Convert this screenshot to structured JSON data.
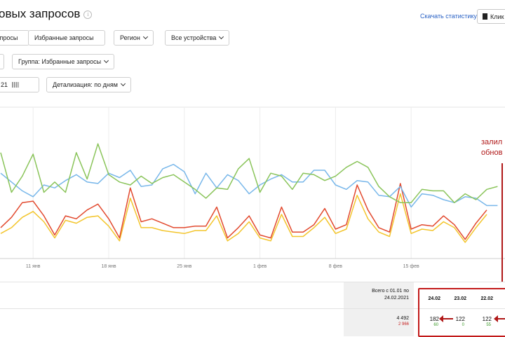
{
  "header": {
    "title": "овых запросов",
    "info_glyph": "i",
    "download_link": "Скачать статистику",
    "clip_button": "Клик"
  },
  "filters": {
    "queries_tab": "Запросы",
    "favorites_tab": "Избранные запросы",
    "region": "Регион",
    "devices": "Все устройства",
    "group": "Группа: Избранные запросы",
    "date_value": "21",
    "detail": "Детализация: по дням"
  },
  "annotation": {
    "line1": "залил",
    "line2": "обнов"
  },
  "colors": {
    "green": "#8ac45a",
    "blue": "#78b7ea",
    "red": "#e2492e",
    "yellow": "#f3c52c",
    "annotation": "#b01818"
  },
  "chart_data": {
    "type": "line",
    "x_ticks": [
      "11 янв",
      "18 янв",
      "25 янв",
      "1 фев",
      "8 фев",
      "15 фев"
    ],
    "series": [
      {
        "color": "green",
        "values": [
          72,
          45,
          56,
          71,
          45,
          52,
          45,
          72,
          54,
          78,
          57,
          52,
          50,
          56,
          51,
          55,
          57,
          52,
          47,
          41,
          48,
          47,
          61,
          68,
          45,
          58,
          56,
          47,
          58,
          57,
          53,
          56,
          62,
          66,
          62,
          49,
          42,
          38,
          38,
          47,
          46,
          46,
          38,
          44,
          40,
          47,
          49
        ]
      },
      {
        "color": "blue",
        "values": [
          58,
          52,
          46,
          42,
          50,
          48,
          53,
          57,
          52,
          51,
          58,
          55,
          60,
          49,
          50,
          61,
          64,
          59,
          44,
          58,
          48,
          57,
          53,
          44,
          50,
          54,
          57,
          52,
          52,
          60,
          60,
          50,
          47,
          53,
          52,
          43,
          42,
          49,
          35,
          44,
          43,
          40,
          38,
          42,
          41,
          36,
          36
        ]
      },
      {
        "color": "red",
        "values": [
          21,
          28,
          38,
          39,
          29,
          16,
          29,
          27,
          33,
          37,
          27,
          14,
          48,
          25,
          27,
          24,
          21,
          21,
          22,
          22,
          35,
          14,
          21,
          29,
          16,
          14,
          35,
          18,
          18,
          23,
          34,
          20,
          23,
          50,
          33,
          21,
          18,
          51,
          20,
          23,
          22,
          29,
          23,
          13,
          24,
          33
        ]
      },
      {
        "color": "yellow",
        "values": [
          17,
          21,
          28,
          32,
          25,
          14,
          26,
          24,
          28,
          29,
          22,
          12,
          41,
          21,
          21,
          19,
          18,
          17,
          19,
          19,
          29,
          12,
          17,
          25,
          14,
          12,
          30,
          15,
          15,
          21,
          28,
          17,
          20,
          43,
          27,
          18,
          15,
          44,
          17,
          20,
          19,
          25,
          21,
          11,
          21,
          30
        ]
      }
    ]
  },
  "table": {
    "period_label_line1": "Всего с 01.01 по",
    "period_label_line2": "24.02.2021",
    "total_main": "4 492",
    "total_sub": "2 966",
    "dates": [
      "24.02",
      "23.02",
      "22.02"
    ],
    "values": [
      "182",
      "122",
      "122"
    ],
    "sub_values": [
      "60",
      "0",
      "55"
    ]
  }
}
